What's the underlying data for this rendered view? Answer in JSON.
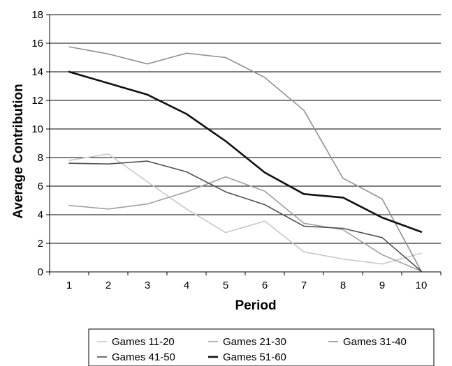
{
  "chart_data": {
    "type": "line",
    "title": "",
    "xlabel": "Period",
    "ylabel": "Average Contribution",
    "x": [
      1,
      2,
      3,
      4,
      5,
      6,
      7,
      8,
      9,
      10
    ],
    "ylim": [
      0,
      18
    ],
    "yticks": [
      0,
      2,
      4,
      6,
      8,
      10,
      12,
      14,
      16,
      18
    ],
    "grid": true,
    "legend_position": "bottom",
    "series": [
      {
        "name": "Games 11-20",
        "color": "#c8c8c8",
        "width": 1.6,
        "values": [
          7.8,
          8.25,
          6.3,
          4.4,
          2.75,
          3.55,
          1.4,
          0.9,
          0.55,
          1.3
        ]
      },
      {
        "name": "Games 21-30",
        "color": "#a0a0a0",
        "width": 1.6,
        "values": [
          4.65,
          4.4,
          4.75,
          5.6,
          6.65,
          5.65,
          3.4,
          2.95,
          1.2,
          0.05
        ]
      },
      {
        "name": "Games 31-40",
        "color": "#909090",
        "width": 1.6,
        "values": [
          15.75,
          15.25,
          14.55,
          15.3,
          15.0,
          13.6,
          11.3,
          6.55,
          5.1,
          0.05
        ]
      },
      {
        "name": "Games 41-50",
        "color": "#505050",
        "width": 1.6,
        "values": [
          7.6,
          7.55,
          7.75,
          7.0,
          5.6,
          4.7,
          3.2,
          3.05,
          2.4,
          0.05
        ]
      },
      {
        "name": "Games 51-60",
        "color": "#111111",
        "width": 2.6,
        "values": [
          14.0,
          13.2,
          12.4,
          11.05,
          9.15,
          6.95,
          5.45,
          5.2,
          3.8,
          2.8
        ]
      }
    ]
  }
}
